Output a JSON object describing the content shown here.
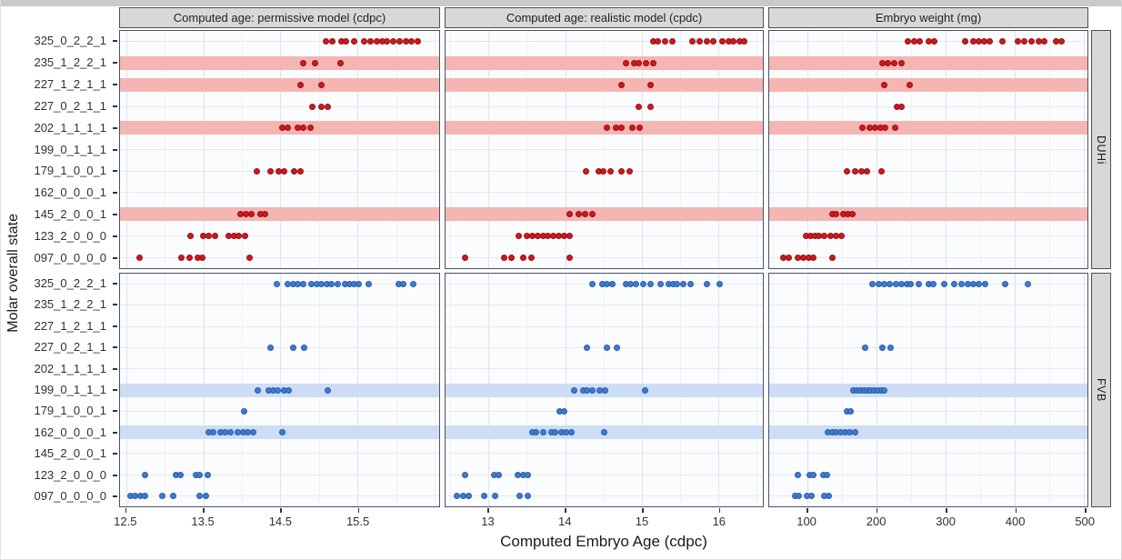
{
  "colors": {
    "strip_bg": "#d8d8d8",
    "strip_border": "#4f4f4f",
    "panel_bg": "#fbfcfe",
    "panel_border": "#4a5263",
    "grid_major": "#dde3ed",
    "grid_minor": "#eef1f6",
    "grid_row": "#e4e9f1",
    "axis_text": "#303030",
    "red_point": "#cb1a1f",
    "red_band": "#f4b5b3",
    "blue_point": "#3d7bd0",
    "blue_band": "#cdddf6"
  },
  "chart_data": {
    "type": "scatter",
    "x_label": "Computed Embryo Age (cdpc)",
    "y_label": "Molar overall state",
    "grid": true,
    "y_categories": [
      "325_0_2_2_1",
      "235_1_2_2_1",
      "227_1_2_1_1",
      "227_0_2_1_1",
      "202_1_1_1_1",
      "199_0_1_1_1",
      "179_1_0_0_1",
      "162_0_0_0_1",
      "145_2_0_0_1",
      "123_2_0_0_0",
      "097_0_0_0_0"
    ],
    "col_panels": [
      {
        "title": "Computed age: permissive model (cdpc)",
        "axis_min": 12.42,
        "axis_max": 16.56,
        "tick_values": [
          12.5,
          13.5,
          14.5,
          15.5
        ],
        "tick_labels": [
          "12.5",
          "13.5",
          "14.5",
          "15.5"
        ]
      },
      {
        "title": "Computed age: realistic model (cpdc)",
        "axis_min": 12.44,
        "axis_max": 16.58,
        "tick_values": [
          13,
          14,
          15,
          16
        ],
        "tick_labels": [
          "13",
          "14",
          "15",
          "16"
        ]
      },
      {
        "title": "Embryo weight (mg)",
        "axis_min": 45,
        "axis_max": 505,
        "tick_values": [
          100,
          200,
          300,
          400,
          500
        ],
        "tick_labels": [
          "100",
          "200",
          "300",
          "400",
          "500"
        ]
      }
    ],
    "row_facets": [
      {
        "label": "DUHi",
        "point_fill": "#cb1a1f",
        "point_stroke": "#991014",
        "band_color": "#f4b5b3",
        "highlighted_rows": [
          "235_1_2_2_1",
          "227_1_2_1_1",
          "202_1_1_1_1",
          "145_2_0_0_1"
        ],
        "points_by_panel": [
          {
            "325_0_2_2_1": [
              15.09,
              15.17,
              15.29,
              15.35,
              15.46,
              15.59,
              15.67,
              15.75,
              15.82,
              15.88,
              15.97,
              16.05,
              16.13,
              16.2,
              16.28
            ],
            "235_1_2_2_1": [
              14.8,
              14.95,
              15.28
            ],
            "227_1_2_1_1": [
              14.76,
              15.03
            ],
            "227_0_2_1_1": [
              14.91,
              15.03,
              15.11
            ],
            "202_1_1_1_1": [
              14.53,
              14.6,
              14.72,
              14.8,
              14.89
            ],
            "179_1_0_0_1": [
              14.2,
              14.37,
              14.48,
              14.55,
              14.68,
              14.76
            ],
            "145_2_0_0_1": [
              13.98,
              14.05,
              14.12,
              14.24,
              14.3
            ],
            "123_2_0_0_0": [
              13.34,
              13.5,
              13.57,
              13.65,
              13.83,
              13.9,
              13.96,
              14.04
            ],
            "097_0_0_0_0": [
              12.67,
              13.22,
              13.32,
              13.43,
              13.49,
              14.1
            ]
          },
          {
            "325_0_2_2_1": [
              15.15,
              15.21,
              15.31,
              15.4,
              15.66,
              15.75,
              15.85,
              15.93,
              16.05,
              16.13,
              16.2,
              16.28,
              16.34
            ],
            "235_1_2_2_1": [
              14.8,
              14.9,
              14.96,
              15.05,
              15.15
            ],
            "227_1_2_1_1": [
              14.74,
              15.11
            ],
            "227_0_2_1_1": [
              14.96,
              15.11
            ],
            "202_1_1_1_1": [
              14.55,
              14.67,
              14.74,
              14.88,
              14.97
            ],
            "179_1_0_0_1": [
              14.27,
              14.44,
              14.5,
              14.59,
              14.74,
              14.84
            ],
            "145_2_0_0_1": [
              14.06,
              14.18,
              14.26,
              14.35
            ],
            "123_2_0_0_0": [
              13.4,
              13.5,
              13.57,
              13.64,
              13.71,
              13.78,
              13.85,
              13.92,
              13.99,
              14.06
            ],
            "097_0_0_0_0": [
              12.69,
              13.2,
              13.3,
              13.45,
              13.56,
              14.06
            ]
          },
          {
            "325_0_2_2_1": [
              246,
              255,
              263,
              275,
              283,
              328,
              340,
              348,
              356,
              364,
              382,
              405,
              413,
              424,
              435,
              443,
              460,
              468
            ],
            "235_1_2_2_1": [
              209,
              217,
              226,
              236
            ],
            "227_1_2_1_1": [
              211,
              248
            ],
            "227_0_2_1_1": [
              230,
              236
            ],
            "202_1_1_1_1": [
              180,
              190,
              198,
              206,
              213,
              227
            ],
            "179_1_0_0_1": [
              157,
              169,
              178,
              186,
              207
            ],
            "145_2_0_0_1": [
              136,
              142,
              152,
              159,
              165
            ],
            "123_2_0_0_0": [
              98,
              105,
              111,
              117,
              125,
              134,
              142,
              150
            ],
            "097_0_0_0_0": [
              65,
              73,
              86,
              94,
              102,
              109,
              136
            ]
          }
        ]
      },
      {
        "label": "FVB",
        "point_fill": "#3d7bd0",
        "point_stroke": "#2b5cab",
        "band_color": "#cdddf6",
        "highlighted_rows": [
          "199_0_1_1_1",
          "162_0_0_0_1"
        ],
        "points_by_panel": [
          {
            "325_0_2_2_1": [
              14.45,
              14.6,
              14.67,
              14.73,
              14.8,
              14.9,
              14.97,
              15.03,
              15.1,
              15.16,
              15.24,
              15.34,
              15.4,
              15.46,
              15.52,
              15.64,
              16.04,
              16.1,
              16.22
            ],
            "227_0_2_1_1": [
              14.37,
              14.67,
              14.81
            ],
            "199_0_1_1_1": [
              14.21,
              14.35,
              14.41,
              14.47,
              14.55,
              14.61,
              15.11
            ],
            "179_1_0_0_1": [
              14.03
            ],
            "162_0_0_0_1": [
              13.57,
              13.63,
              13.72,
              13.78,
              13.85,
              13.95,
              14.02,
              14.08,
              14.15,
              14.53
            ],
            "123_2_0_0_0": [
              12.74,
              13.15,
              13.2,
              13.4,
              13.45,
              13.56
            ],
            "097_0_0_0_0": [
              12.56,
              12.62,
              12.68,
              12.75,
              12.97,
              13.11,
              13.45,
              13.53
            ]
          },
          {
            "325_0_2_2_1": [
              14.35,
              14.49,
              14.54,
              14.62,
              14.79,
              14.85,
              14.93,
              15.02,
              15.12,
              15.25,
              15.35,
              15.41,
              15.46,
              15.54,
              15.64,
              15.85,
              16.02
            ],
            "227_0_2_1_1": [
              14.28,
              14.54,
              14.68
            ],
            "199_0_1_1_1": [
              14.12,
              14.24,
              14.29,
              14.35,
              14.45,
              14.52,
              15.04
            ],
            "179_1_0_0_1": [
              13.93,
              13.99
            ],
            "162_0_0_0_1": [
              13.57,
              13.62,
              13.72,
              13.82,
              13.87,
              13.95,
              14.01,
              14.08,
              14.51
            ],
            "123_2_0_0_0": [
              12.69,
              13.07,
              13.13,
              13.38,
              13.45,
              13.51
            ],
            "097_0_0_0_0": [
              12.59,
              12.67,
              12.74,
              12.95,
              13.09,
              13.41,
              13.51
            ]
          },
          {
            "325_0_2_2_1": [
              194,
              203,
              211,
              219,
              228,
              236,
              244,
              250,
              261,
              275,
              282,
              298,
              313,
              323,
              332,
              340,
              348,
              357,
              386,
              419
            ],
            "227_0_2_1_1": [
              184,
              209,
              221
            ],
            "199_0_1_1_1": [
              167,
              172,
              177,
              182,
              187,
              192,
              197,
              202,
              207,
              211
            ],
            "179_1_0_0_1": [
              158,
              162
            ],
            "162_0_0_0_1": [
              130,
              136,
              142,
              148,
              155,
              161,
              169
            ],
            "123_2_0_0_0": [
              86,
              104,
              109,
              123,
              129
            ],
            "097_0_0_0_0": [
              82,
              88,
              100,
              106,
              125,
              131
            ]
          }
        ]
      }
    ]
  }
}
